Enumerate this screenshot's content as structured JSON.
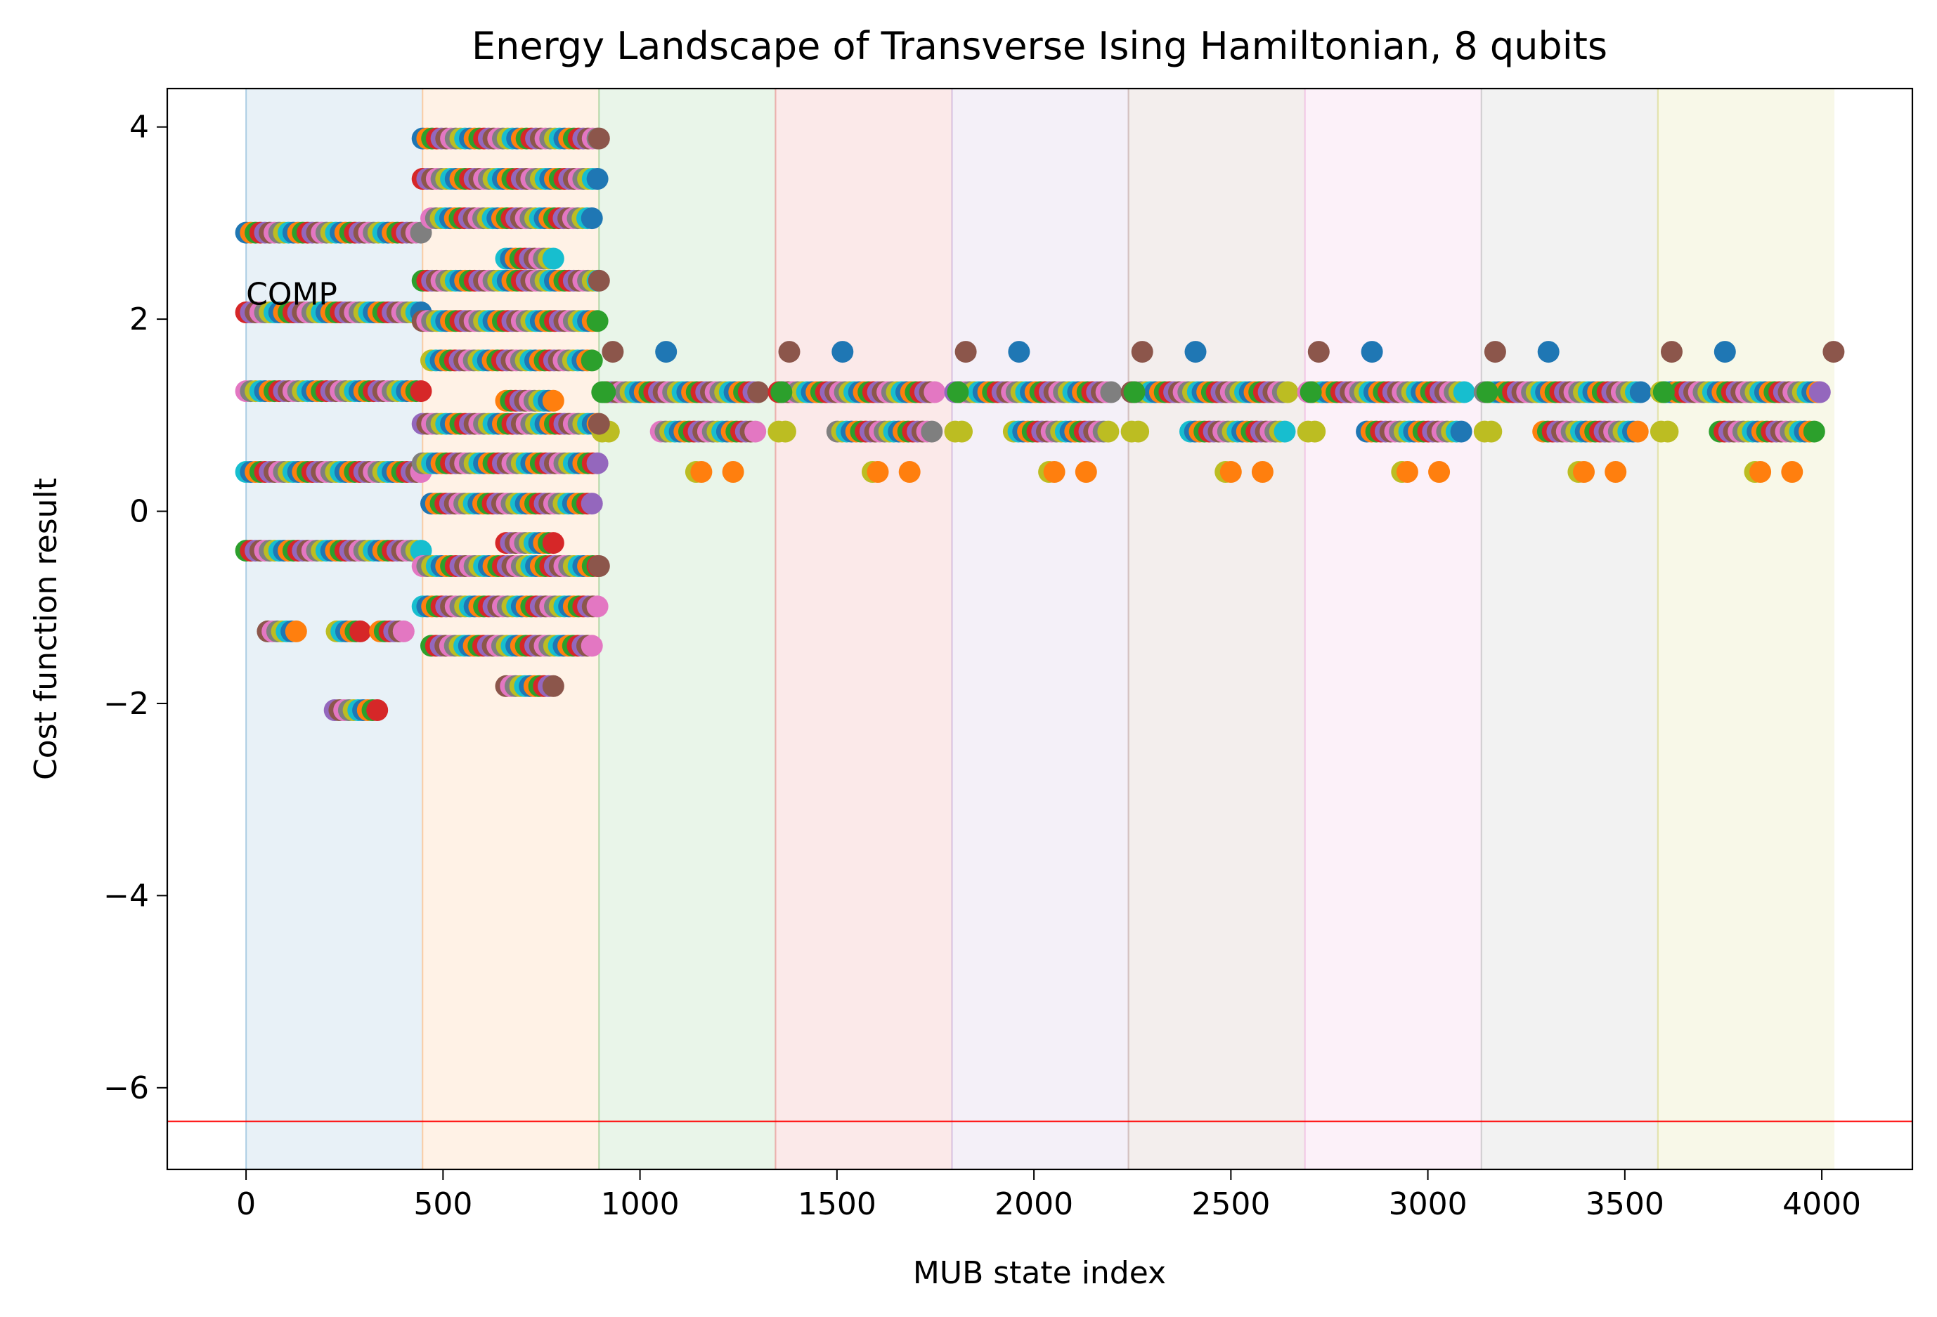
{
  "chart_data": {
    "type": "scatter",
    "title": "Energy Landscape of Transverse Ising Hamiltonian, 8 qubits",
    "xlabel": "MUB state index",
    "ylabel": "Cost function result",
    "xlim": [
      -200,
      4230
    ],
    "ylim": [
      -6.85,
      4.4
    ],
    "xticks": [
      0,
      500,
      1000,
      1500,
      2000,
      2500,
      3000,
      3500,
      4000
    ],
    "yticks": [
      -6,
      -4,
      -2,
      0,
      2,
      4
    ],
    "grid": false,
    "annotation": {
      "text": "COMP",
      "x": 0,
      "y": 2.15
    },
    "reference_line": {
      "y": -6.35,
      "color": "#ff0000"
    },
    "bases": [
      {
        "start": 0,
        "end": 448,
        "color": "#1f77b4"
      },
      {
        "start": 448,
        "end": 896,
        "color": "#ff7f0e"
      },
      {
        "start": 896,
        "end": 1344,
        "color": "#2ca02c"
      },
      {
        "start": 1344,
        "end": 1792,
        "color": "#d62728"
      },
      {
        "start": 1792,
        "end": 2240,
        "color": "#9467bd"
      },
      {
        "start": 2240,
        "end": 2688,
        "color": "#8c564b"
      },
      {
        "start": 2688,
        "end": 3136,
        "color": "#e377c2"
      },
      {
        "start": 3136,
        "end": 3584,
        "color": "#7f7f7f"
      },
      {
        "start": 3584,
        "end": 4032,
        "color": "#bcbd22"
      }
    ],
    "palette": [
      "#1f77b4",
      "#ff7f0e",
      "#2ca02c",
      "#d62728",
      "#9467bd",
      "#8c564b",
      "#e377c2",
      "#7f7f7f",
      "#bcbd22",
      "#17becf"
    ],
    "series": [
      {
        "base": 0,
        "x_range": [
          0,
          448
        ],
        "levels": [
          {
            "y": 2.9,
            "x_range": [
              0,
              448
            ]
          },
          {
            "y": 2.07,
            "x_range": [
              0,
              448
            ]
          },
          {
            "y": 1.25,
            "x_range": [
              0,
              448
            ]
          },
          {
            "y": 0.41,
            "x_range": [
              0,
              448
            ]
          },
          {
            "y": -0.41,
            "x_range": [
              0,
              448
            ]
          },
          {
            "y": -1.25,
            "x_range": [
              55,
              135
            ]
          },
          {
            "y": -1.25,
            "x_range": [
              230,
              290
            ]
          },
          {
            "y": -1.25,
            "x_range": [
              340,
              400
            ]
          },
          {
            "y": -2.07,
            "x_range": [
              225,
              335
            ]
          }
        ]
      },
      {
        "base": 1,
        "x_range": [
          448,
          896
        ],
        "levels": [
          {
            "y": 3.88,
            "x_range": [
              448,
              896
            ]
          },
          {
            "y": 3.46,
            "x_range": [
              448,
              896
            ]
          },
          {
            "y": 3.05,
            "x_range": [
              470,
              880
            ]
          },
          {
            "y": 2.63,
            "x_range": [
              660,
              790
            ]
          },
          {
            "y": 2.4,
            "x_range": [
              448,
              896
            ]
          },
          {
            "y": 1.98,
            "x_range": [
              448,
              896
            ]
          },
          {
            "y": 1.57,
            "x_range": [
              470,
              880
            ]
          },
          {
            "y": 1.15,
            "x_range": [
              660,
              790
            ]
          },
          {
            "y": 0.91,
            "x_range": [
              448,
              896
            ]
          },
          {
            "y": 0.5,
            "x_range": [
              448,
              896
            ]
          },
          {
            "y": 0.08,
            "x_range": [
              470,
              880
            ]
          },
          {
            "y": -0.33,
            "x_range": [
              660,
              790
            ]
          },
          {
            "y": -0.57,
            "x_range": [
              448,
              896
            ]
          },
          {
            "y": -0.99,
            "x_range": [
              448,
              896
            ]
          },
          {
            "y": -1.4,
            "x_range": [
              470,
              880
            ]
          },
          {
            "y": -1.82,
            "x_range": [
              660,
              790
            ]
          }
        ]
      },
      {
        "base": "2-8",
        "levels": [
          {
            "y": 1.66,
            "note": "sparse points"
          },
          {
            "y": 1.24
          },
          {
            "y": 0.83
          },
          {
            "y": 0.41,
            "note": "sparse points"
          }
        ]
      }
    ]
  }
}
